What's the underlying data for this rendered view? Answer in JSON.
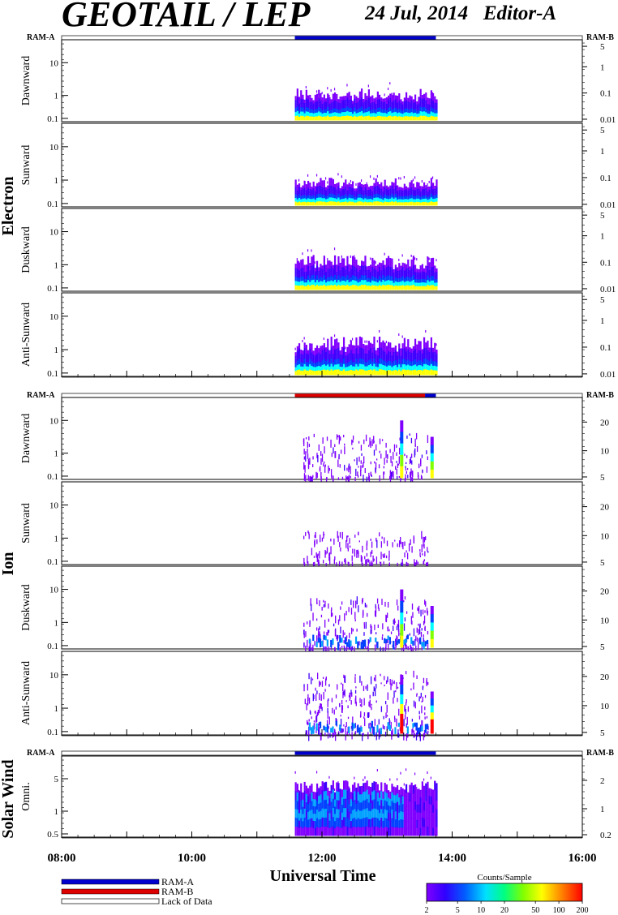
{
  "header": {
    "title": "GEOTAIL / LEP",
    "date_editor": "24 Jul, 2014   Editor-A"
  },
  "labels": {
    "ram_a": "RAM-A",
    "ram_b": "RAM-B",
    "xlabel": "Universal Time",
    "colorbar_title": "Counts/Sample"
  },
  "legend": {
    "items": [
      {
        "label": "RAM-A",
        "color": "#0000cc"
      },
      {
        "label": "RAM-B",
        "color": "#dd0000"
      },
      {
        "label": "Lack of Data",
        "color": "#ffffff"
      }
    ]
  },
  "colors": {
    "ram_a": "#0000cc",
    "ram_b": "#dd0000",
    "colormap": [
      "#8000ff",
      "#4000ff",
      "#0040ff",
      "#00a0ff",
      "#00ffff",
      "#00ff80",
      "#80ff00",
      "#ffff00",
      "#ff8000",
      "#ff0000"
    ]
  },
  "chart_data": {
    "type": "heatmap",
    "x_axis": {
      "range": [
        "08:00",
        "16:00"
      ],
      "ticks": [
        "08:00",
        "10:00",
        "12:00",
        "14:00",
        "16:00"
      ],
      "label": "Universal Time"
    },
    "colorbar": {
      "title": "Counts/Sample",
      "scale": "log",
      "range": [
        2,
        200
      ],
      "ticks": [
        "2",
        "5",
        "10",
        "20",
        "50",
        "100",
        "200"
      ]
    },
    "data_interval": {
      "start": "11:35",
      "end": "13:45"
    },
    "groups": [
      {
        "name": "Electron",
        "ram_status_bar": [
          {
            "mode": "RAM-A",
            "start": "11:35",
            "end": "13:45"
          }
        ],
        "panels": [
          {
            "name": "Dawnward",
            "left_ticks": [
              "10",
              "1",
              "0.1"
            ],
            "right_ticks": [
              "5",
              "1",
              "0.1",
              "0.01"
            ],
            "spread": 0.35,
            "level": 0.8
          },
          {
            "name": "Sunward",
            "left_ticks": [
              "10",
              "1",
              "0.1"
            ],
            "right_ticks": [
              "5",
              "1",
              "0.1",
              "0.01"
            ],
            "spread": 0.3,
            "level": 0.75
          },
          {
            "name": "Duskward",
            "left_ticks": [
              "10",
              "1",
              "0.1"
            ],
            "right_ticks": [
              "5",
              "1",
              "0.1",
              "0.01"
            ],
            "spread": 0.38,
            "level": 0.8
          },
          {
            "name": "Anti-Sunward",
            "left_ticks": [
              "10",
              "1",
              "0.1"
            ],
            "right_ticks": [
              "5",
              "1",
              "0.1",
              "0.01"
            ],
            "spread": 0.42,
            "level": 0.8
          }
        ]
      },
      {
        "name": "Ion",
        "ram_status_bar": [
          {
            "mode": "RAM-B",
            "start": "11:35",
            "end": "13:35"
          },
          {
            "mode": "RAM-A",
            "start": "13:35",
            "end": "13:45"
          }
        ],
        "panels": [
          {
            "name": "Dawnward",
            "left_ticks": [
              "10",
              "1",
              "0.1"
            ],
            "right_ticks": [
              "20",
              "10",
              "5"
            ],
            "spread": 0.55,
            "level": 0.25,
            "spikes": [
              "13:12",
              "13:40"
            ]
          },
          {
            "name": "Sunward",
            "left_ticks": [
              "10",
              "1",
              "0.1"
            ],
            "right_ticks": [
              "20",
              "10",
              "5"
            ],
            "spread": 0.4,
            "level": 0.08
          },
          {
            "name": "Duskward",
            "left_ticks": [
              "10",
              "1",
              "0.1"
            ],
            "right_ticks": [
              "20",
              "10",
              "5"
            ],
            "spread": 0.62,
            "level": 0.4,
            "spikes": [
              "13:12",
              "13:40"
            ]
          },
          {
            "name": "Anti-Sunward",
            "left_ticks": [
              "10",
              "1",
              "0.1"
            ],
            "right_ticks": [
              "20",
              "10",
              "5"
            ],
            "spread": 0.75,
            "level": 0.55,
            "spikes": [
              "13:12",
              "13:40"
            ]
          }
        ]
      },
      {
        "name": "Solar Wind",
        "ram_status_bar": [
          {
            "mode": "RAM-A",
            "start": "11:35",
            "end": "13:45"
          }
        ],
        "panels": [
          {
            "name": "Omni.",
            "left_ticks": [
              "5",
              "1",
              "0.5"
            ],
            "right_ticks": [
              "2",
              "1",
              "0.2"
            ],
            "spread": 0.7,
            "level": 0.5
          }
        ]
      }
    ]
  }
}
